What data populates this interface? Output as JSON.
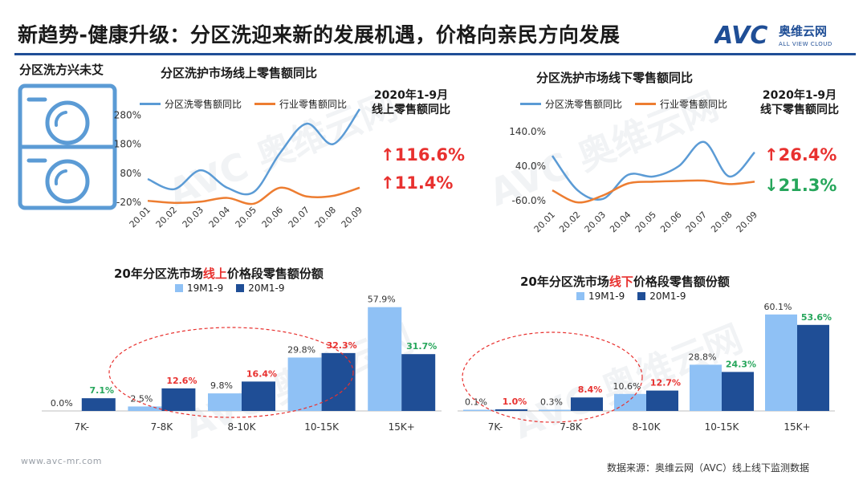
{
  "header": {
    "title": "新趋势-健康升级：分区洗迎来新的发展机遇，价格向亲民方向发展",
    "logo_mark": "AVC",
    "logo_cn": "奥维云网",
    "logo_en": "ALL VIEW CLOUD"
  },
  "left_panel": {
    "label": "分区洗方兴未艾"
  },
  "colors": {
    "line_category": "#5b9bd5",
    "line_industry": "#ed7d31",
    "bar_2019": "#8fc1f5",
    "bar_2020": "#1f4e96",
    "up_red": "#e8312f",
    "down_green": "#26a65b",
    "title_red": "#e8312f"
  },
  "chart_data": [
    {
      "type": "line",
      "id": "online-yoy",
      "title": "分区洗护市场线上零售额同比",
      "categories": [
        "20.01",
        "20.02",
        "20.03",
        "20.04",
        "20.05",
        "20.06",
        "20.07",
        "20.08",
        "20.09"
      ],
      "series": [
        {
          "name": "分区洗零售额同比",
          "values": [
            60,
            25,
            90,
            30,
            15,
            150,
            250,
            180,
            300
          ]
        },
        {
          "name": "行业零售额同比",
          "values": [
            -15,
            -22,
            -18,
            -5,
            -25,
            30,
            0,
            2,
            30
          ]
        }
      ],
      "yticks": [
        "280%",
        "180%",
        "80%",
        "-20%"
      ],
      "ylim": [
        -20,
        300
      ],
      "note": [
        "2020年1-9月",
        "线上零售额同比"
      ],
      "highlights": [
        {
          "arrow": "↑",
          "value": "116.6%",
          "tone": "up"
        },
        {
          "arrow": "↑",
          "value": "11.4%",
          "tone": "up"
        }
      ]
    },
    {
      "type": "line",
      "id": "offline-yoy",
      "title": "分区洗护市场线下零售额同比",
      "categories": [
        "20.01",
        "20.02",
        "20.03",
        "20.04",
        "20.05",
        "20.06",
        "20.07",
        "20.08",
        "20.09"
      ],
      "series": [
        {
          "name": "分区洗零售额同比",
          "values": [
            70,
            -30,
            -55,
            15,
            10,
            40,
            110,
            10,
            80
          ]
        },
        {
          "name": "行业零售额同比",
          "values": [
            -30,
            -65,
            -45,
            -10,
            -5,
            -3,
            -2,
            -12,
            -5
          ]
        }
      ],
      "yticks": [
        "140.0%",
        "40.0%",
        "-60.0%"
      ],
      "ylim": [
        -60,
        140
      ],
      "note": [
        "2020年1-9月",
        "线下零售额同比"
      ],
      "highlights": [
        {
          "arrow": "↑",
          "value": "26.4%",
          "tone": "up"
        },
        {
          "arrow": "↓",
          "value": "21.3%",
          "tone": "down"
        }
      ]
    },
    {
      "type": "bar",
      "id": "online-share",
      "title_parts": [
        "20年分区洗市场",
        "线上",
        "价格段零售额份额"
      ],
      "categories": [
        "7K-",
        "7-8K",
        "8-10K",
        "10-15K",
        "15K+"
      ],
      "series": [
        {
          "name": "19M1-9",
          "values": [
            0.0,
            2.5,
            9.8,
            29.8,
            57.9
          ],
          "labels": [
            "0.0%",
            "2.5%",
            "9.8%",
            "29.8%",
            "57.9%"
          ]
        },
        {
          "name": "20M1-9",
          "values": [
            7.1,
            12.6,
            16.4,
            32.3,
            31.7
          ],
          "labels": [
            "7.1%",
            "12.6%",
            "16.4%",
            "32.3%",
            "31.7%"
          ]
        }
      ],
      "label_tones": [
        "down",
        "up",
        "up",
        "up",
        "down"
      ],
      "ylim": [
        0,
        60
      ]
    },
    {
      "type": "bar",
      "id": "offline-share",
      "title_parts": [
        "20年分区洗市场",
        "线下",
        "价格段零售额份额"
      ],
      "categories": [
        "7K-",
        "7-8K",
        "8-10K",
        "10-15K",
        "15K+"
      ],
      "series": [
        {
          "name": "19M1-9",
          "values": [
            0.1,
            0.3,
            10.6,
            28.8,
            60.1
          ],
          "labels": [
            "0.1%",
            "0.3%",
            "10.6%",
            "28.8%",
            "60.1%"
          ]
        },
        {
          "name": "20M1-9",
          "values": [
            1.0,
            8.4,
            12.7,
            24.3,
            53.6
          ],
          "labels": [
            "1.0%",
            "8.4%",
            "12.7%",
            "24.3%",
            "53.6%"
          ]
        }
      ],
      "label_tones": [
        "up",
        "up",
        "up",
        "down",
        "down"
      ],
      "ylim": [
        0,
        62
      ]
    }
  ],
  "footer": {
    "website": "www.avc-mr.com",
    "source": "数据来源：奥维云网（AVC）线上线下监测数据"
  }
}
